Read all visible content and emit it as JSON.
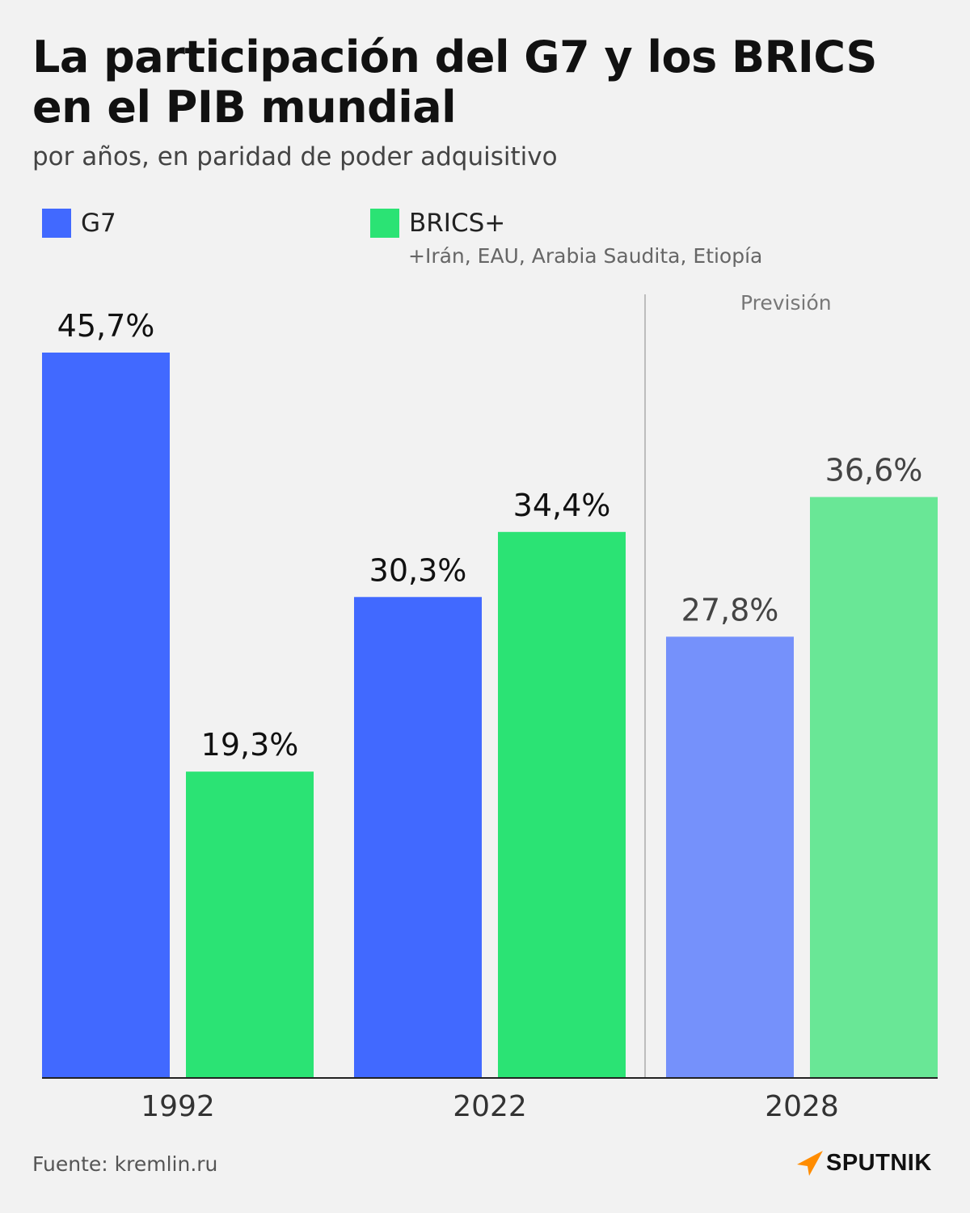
{
  "header": {
    "title_line1": "La participación del G7 y los BRICS",
    "title_line2": "en el PIB mundial",
    "subtitle": "por años, en paridad de poder adquisitivo"
  },
  "legend": {
    "g7_label": "G7",
    "brics_label": "BRICS+",
    "brics_note": "+Irán, EAU, Arabia Saudita, Etiopía"
  },
  "forecast_label": "Previsión",
  "footer": {
    "source": "Fuente: kremlin.ru",
    "brand": "SPUTNIK"
  },
  "colors": {
    "g7": "#4169ff",
    "brics": "#2be374",
    "g7_forecast": "#7591fb",
    "brics_forecast": "#69e796",
    "brand_orange": "#ff8c00"
  },
  "chart_data": {
    "type": "bar",
    "title": "La participación del G7 y los BRICS en el PIB mundial",
    "subtitle": "por años, en paridad de poder adquisitivo",
    "categories": [
      "1992",
      "2022",
      "2028"
    ],
    "forecast_categories": [
      "2028"
    ],
    "series": [
      {
        "name": "G7",
        "values": [
          45.7,
          30.3,
          27.8
        ],
        "labels": [
          "45,7%",
          "30,3%",
          "27,8%"
        ]
      },
      {
        "name": "BRICS+",
        "values": [
          19.3,
          34.4,
          36.6
        ],
        "labels": [
          "19,3%",
          "34,4%",
          "36,6%"
        ]
      }
    ],
    "ylim": [
      0,
      45.7
    ],
    "unit": "%",
    "grid": false,
    "legend": "top-left"
  }
}
